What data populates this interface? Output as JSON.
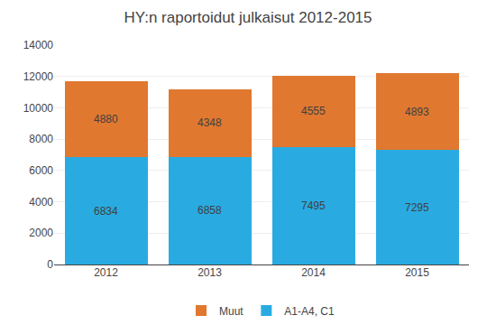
{
  "chart_data": {
    "type": "bar",
    "title": "HY:n raportoidut julkaisut 2012-2015",
    "categories": [
      "2012",
      "2013",
      "2014",
      "2015"
    ],
    "series": [
      {
        "name": "A1-A4, C1",
        "color": "#29ABE2",
        "values": [
          6834,
          6858,
          7495,
          7295
        ]
      },
      {
        "name": "Muut",
        "color": "#E07830",
        "values": [
          4880,
          4348,
          4555,
          4893
        ]
      }
    ],
    "stacked": true,
    "data_labels": true,
    "ylim": [
      0,
      14000
    ],
    "yticks": [
      0,
      2000,
      4000,
      6000,
      8000,
      10000,
      12000,
      14000
    ],
    "grid": true,
    "legend": "bottom"
  }
}
